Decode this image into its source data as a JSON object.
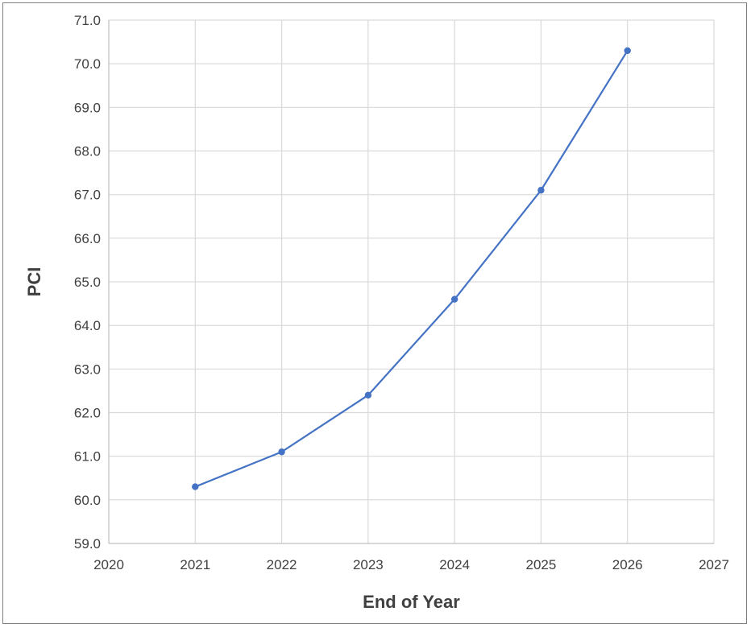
{
  "chart_data": {
    "type": "line",
    "title": "",
    "xlabel": "End of Year",
    "ylabel": "PCI",
    "xlim": [
      2020,
      2027
    ],
    "ylim": [
      59.0,
      71.0
    ],
    "x_ticks": [
      "2020",
      "2021",
      "2022",
      "2023",
      "2024",
      "2025",
      "2026",
      "2027"
    ],
    "y_ticks": [
      "59.0",
      "60.0",
      "61.0",
      "62.0",
      "63.0",
      "64.0",
      "65.0",
      "66.0",
      "67.0",
      "68.0",
      "69.0",
      "70.0",
      "71.0"
    ],
    "grid": true,
    "legend": "none",
    "series": [
      {
        "color": "#4472c4",
        "x": [
          2021,
          2022,
          2023,
          2024,
          2025,
          2026
        ],
        "y": [
          60.3,
          61.1,
          62.4,
          64.6,
          67.1,
          70.3
        ]
      }
    ]
  }
}
